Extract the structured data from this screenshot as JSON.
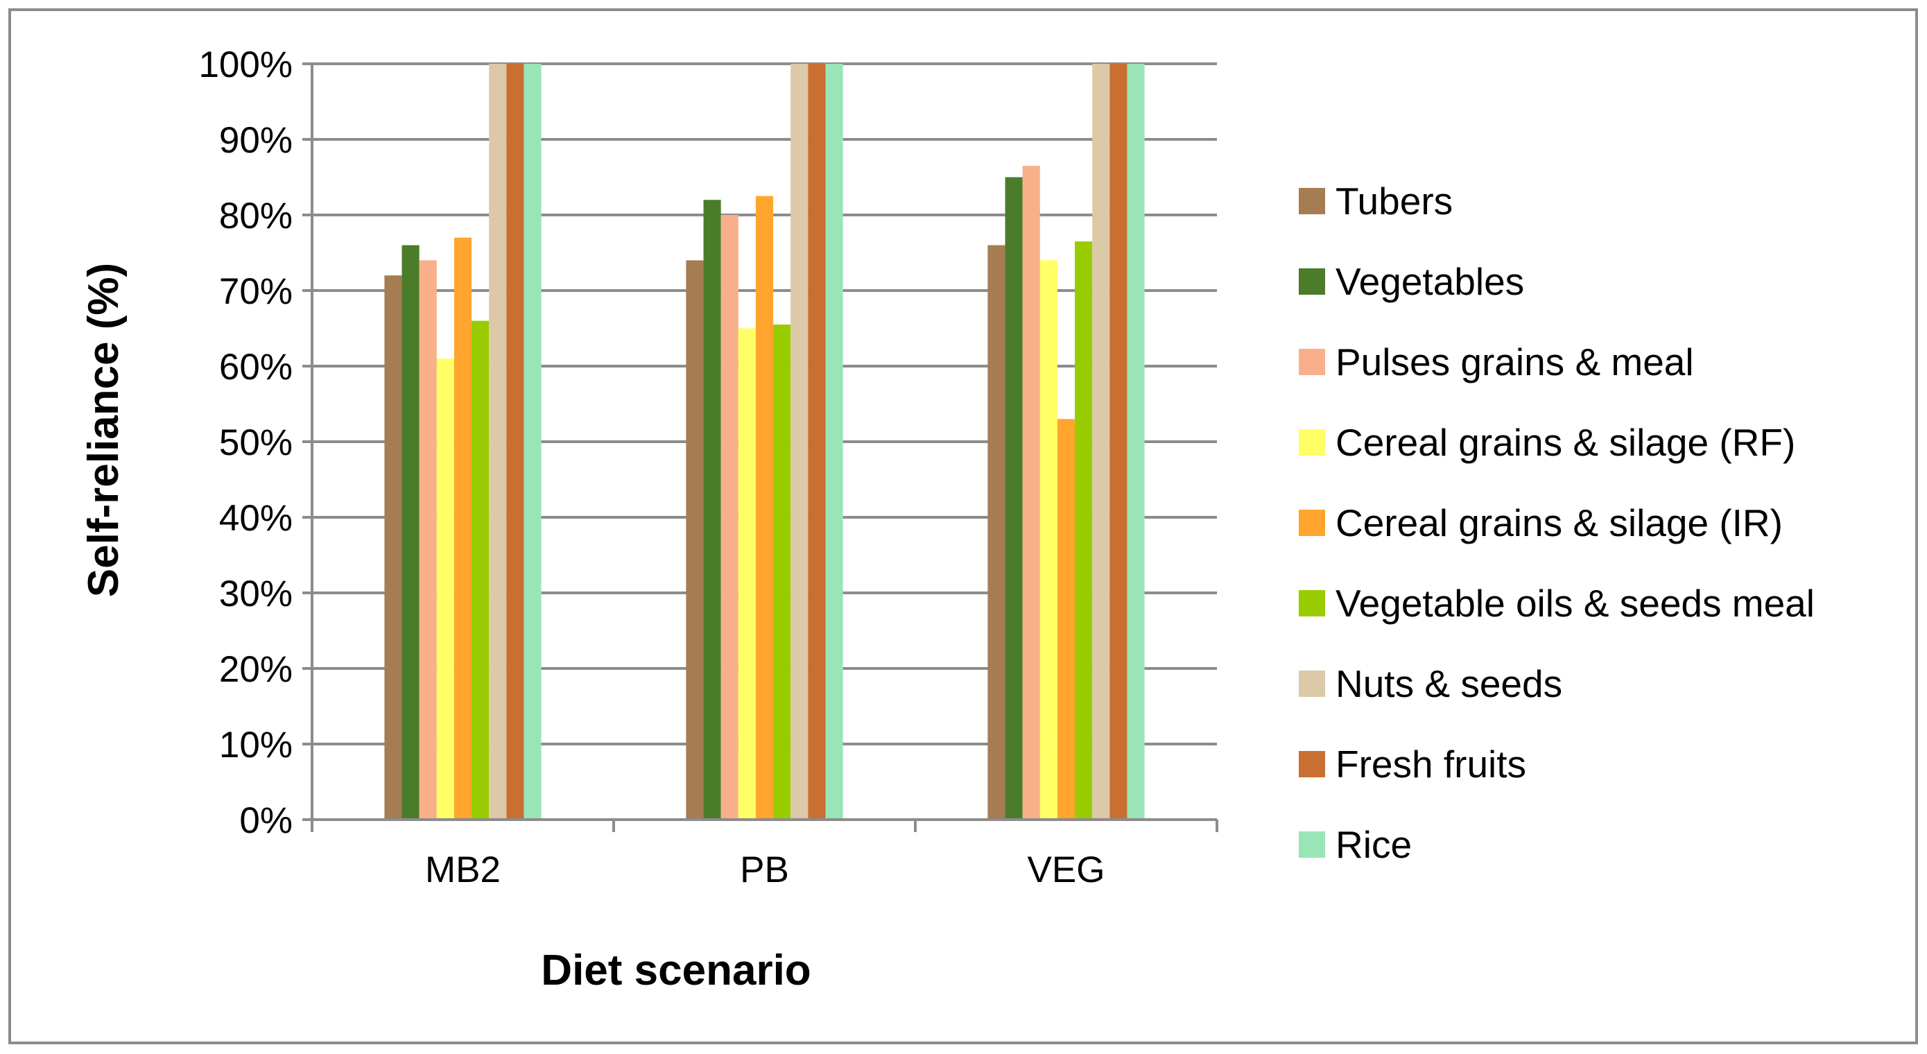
{
  "chart_data": {
    "type": "bar",
    "title": "",
    "xlabel": "Diet scenario",
    "ylabel": "Self-reliance (%)",
    "ylim": [
      0,
      100
    ],
    "yticks": [
      "0%",
      "10%",
      "20%",
      "30%",
      "40%",
      "50%",
      "60%",
      "70%",
      "80%",
      "90%",
      "100%"
    ],
    "grid": true,
    "legend_position": "right",
    "categories": [
      "MB2",
      "PB",
      "VEG"
    ],
    "series": [
      {
        "name": "Tubers",
        "color": "#a67c52",
        "values": [
          72,
          74,
          76
        ]
      },
      {
        "name": "Vegetables",
        "color": "#4a7c2a",
        "values": [
          76,
          82,
          85
        ]
      },
      {
        "name": "Pulses grains & meal",
        "color": "#f9b08a",
        "values": [
          74,
          80,
          86.5
        ]
      },
      {
        "name": "Cereal grains & silage (RF)",
        "color": "#ffff66",
        "values": [
          61,
          65,
          74
        ]
      },
      {
        "name": "Cereal grains & silage (IR)",
        "color": "#ffa52e",
        "values": [
          77,
          82.5,
          53
        ]
      },
      {
        "name": "Vegetable oils & seeds meal",
        "color": "#99cc00",
        "values": [
          66,
          65.5,
          76.5
        ]
      },
      {
        "name": "Nuts & seeds",
        "color": "#dcc9a8",
        "values": [
          100,
          100,
          100
        ]
      },
      {
        "name": "Fresh fruits",
        "color": "#c96f32",
        "values": [
          100,
          100,
          100
        ]
      },
      {
        "name": "Rice",
        "color": "#99e5b8",
        "values": [
          100,
          100,
          100
        ]
      }
    ]
  }
}
